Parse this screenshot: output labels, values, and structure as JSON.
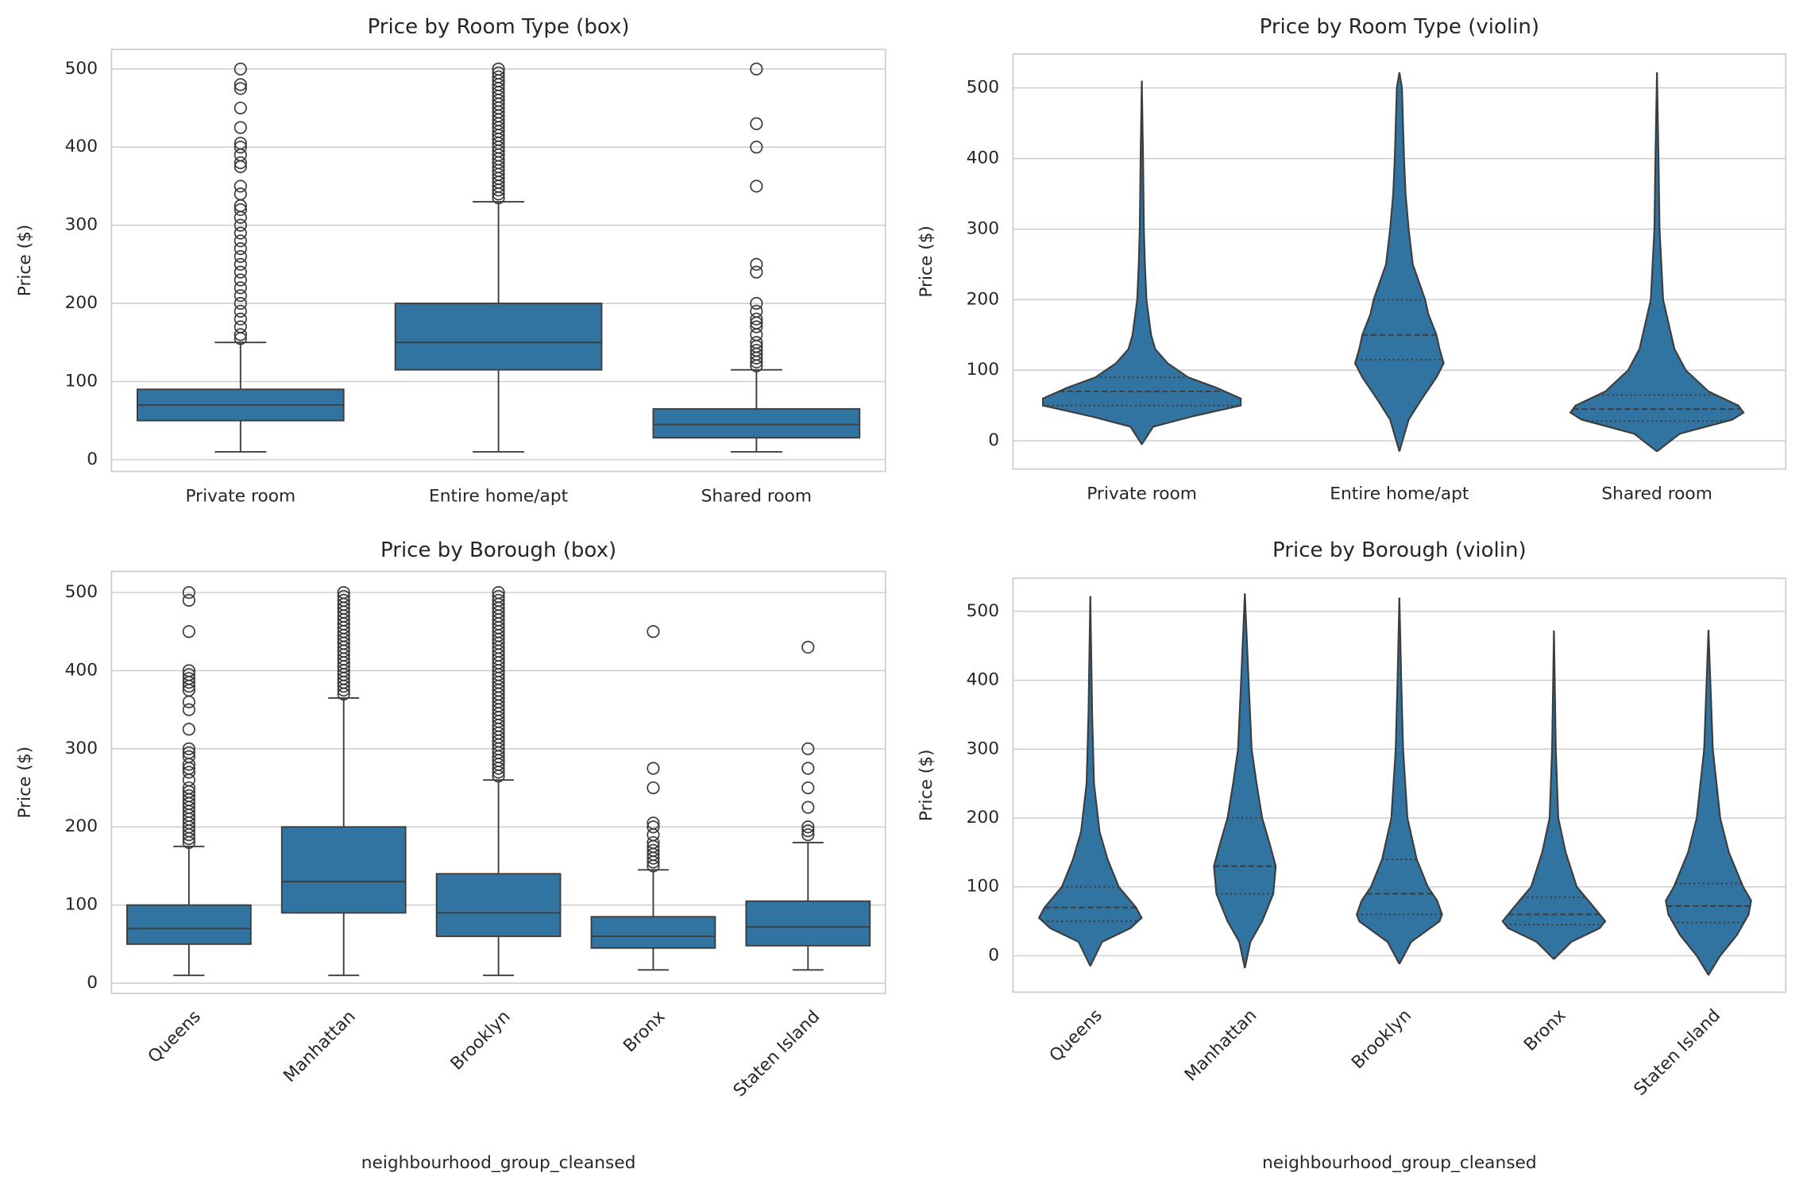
{
  "chart_data": [
    {
      "type": "box",
      "title": "Price by Room Type (box)",
      "ylabel": "Price ($)",
      "color": "#3274a1",
      "grid": true,
      "categories": [
        "Private room",
        "Entire home/apt",
        "Shared room"
      ],
      "ylim": [
        -15,
        525
      ],
      "yticks": [
        0,
        100,
        200,
        300,
        400,
        500
      ],
      "boxes": [
        {
          "min": 10,
          "q1": 50,
          "median": 70,
          "q3": 90,
          "max": 150,
          "outliers": [
            155,
            160,
            170,
            180,
            190,
            200,
            210,
            220,
            230,
            240,
            250,
            260,
            270,
            280,
            290,
            300,
            310,
            320,
            325,
            340,
            350,
            375,
            380,
            390,
            400,
            405,
            425,
            450,
            475,
            480,
            500
          ]
        },
        {
          "min": 10,
          "q1": 115,
          "median": 150,
          "q3": 200,
          "max": 330,
          "outliers": [
            335,
            340,
            345,
            350,
            355,
            360,
            365,
            370,
            375,
            380,
            385,
            390,
            395,
            400,
            405,
            410,
            415,
            420,
            425,
            430,
            435,
            440,
            445,
            450,
            455,
            460,
            465,
            470,
            475,
            480,
            485,
            490,
            495,
            500
          ]
        },
        {
          "min": 10,
          "q1": 28,
          "median": 45,
          "q3": 65,
          "max": 115,
          "outliers": [
            120,
            125,
            130,
            135,
            140,
            145,
            150,
            160,
            170,
            175,
            180,
            190,
            200,
            240,
            250,
            350,
            400,
            430,
            500
          ]
        }
      ]
    },
    {
      "type": "violin",
      "title": "Price by Room Type (violin)",
      "ylabel": "Price ($)",
      "color": "#3274a1",
      "grid": true,
      "categories": [
        "Private room",
        "Entire home/apt",
        "Shared room"
      ],
      "ylim": [
        -40,
        548
      ],
      "yticks": [
        0,
        100,
        200,
        300,
        400,
        500
      ],
      "violins": [
        {
          "q1": 50,
          "median": 70,
          "q3": 90,
          "density_at": [
            -5,
            20,
            35,
            50,
            60,
            75,
            90,
            110,
            130,
            150,
            200,
            250,
            300,
            400,
            510
          ],
          "density": [
            0,
            0.11,
            0.5,
            0.96,
            0.96,
            0.73,
            0.45,
            0.25,
            0.13,
            0.09,
            0.045,
            0.03,
            0.02,
            0.012,
            0
          ]
        },
        {
          "q1": 115,
          "median": 150,
          "q3": 200,
          "density_at": [
            -15,
            30,
            60,
            90,
            110,
            130,
            150,
            180,
            200,
            250,
            300,
            350,
            400,
            450,
            500,
            522
          ],
          "density": [
            0,
            0.09,
            0.22,
            0.36,
            0.43,
            0.39,
            0.36,
            0.28,
            0.25,
            0.13,
            0.09,
            0.06,
            0.045,
            0.035,
            0.025,
            0
          ]
        },
        {
          "q1": 28,
          "median": 45,
          "q3": 65,
          "density_at": [
            -15,
            10,
            30,
            40,
            50,
            70,
            100,
            130,
            200,
            300,
            400,
            522
          ],
          "density": [
            0,
            0.22,
            0.73,
            0.84,
            0.79,
            0.5,
            0.28,
            0.17,
            0.06,
            0.025,
            0.015,
            0
          ]
        }
      ]
    },
    {
      "type": "box",
      "title": "Price by Borough (box)",
      "ylabel": "Price ($)",
      "xlabel": "neighbourhood_group_cleansed",
      "color": "#3274a1",
      "grid": true,
      "categories": [
        "Queens",
        "Manhattan",
        "Brooklyn",
        "Bronx",
        "Staten Island"
      ],
      "ylim": [
        -13,
        527
      ],
      "yticks": [
        0,
        100,
        200,
        300,
        400,
        500
      ],
      "boxes": [
        {
          "min": 10,
          "q1": 50,
          "median": 70,
          "q3": 100,
          "max": 175,
          "outliers": [
            180,
            185,
            190,
            195,
            200,
            205,
            210,
            215,
            220,
            225,
            230,
            235,
            240,
            245,
            250,
            260,
            270,
            275,
            280,
            290,
            295,
            300,
            325,
            350,
            360,
            375,
            380,
            385,
            390,
            395,
            400,
            450,
            490,
            500
          ]
        },
        {
          "min": 10,
          "q1": 90,
          "median": 130,
          "q3": 200,
          "max": 365,
          "outliers": [
            370,
            375,
            380,
            385,
            390,
            395,
            400,
            405,
            410,
            415,
            420,
            425,
            430,
            435,
            440,
            445,
            450,
            455,
            460,
            465,
            470,
            475,
            480,
            485,
            490,
            495,
            500
          ]
        },
        {
          "min": 10,
          "q1": 60,
          "median": 90,
          "q3": 140,
          "max": 260,
          "outliers": [
            265,
            270,
            275,
            280,
            285,
            290,
            295,
            300,
            305,
            310,
            315,
            320,
            325,
            330,
            335,
            340,
            345,
            350,
            355,
            360,
            365,
            370,
            375,
            380,
            385,
            390,
            395,
            400,
            405,
            410,
            415,
            420,
            425,
            430,
            435,
            440,
            445,
            450,
            455,
            460,
            465,
            470,
            475,
            480,
            485,
            490,
            495,
            500
          ]
        },
        {
          "min": 17,
          "q1": 45,
          "median": 60,
          "q3": 85,
          "max": 145,
          "outliers": [
            150,
            155,
            160,
            165,
            170,
            175,
            180,
            190,
            200,
            205,
            250,
            275,
            450
          ]
        },
        {
          "min": 17,
          "q1": 48,
          "median": 72,
          "q3": 105,
          "max": 180,
          "outliers": [
            190,
            195,
            200,
            225,
            250,
            275,
            300,
            430
          ]
        }
      ]
    },
    {
      "type": "violin",
      "title": "Price by Borough (violin)",
      "ylabel": "Price ($)",
      "xlabel": "neighbourhood_group_cleansed",
      "color": "#3274a1",
      "grid": true,
      "categories": [
        "Queens",
        "Manhattan",
        "Brooklyn",
        "Bronx",
        "Staten Island"
      ],
      "ylim": [
        -53,
        548
      ],
      "yticks": [
        0,
        100,
        200,
        300,
        400,
        500
      ],
      "violins": [
        {
          "q1": 50,
          "median": 70,
          "q3": 100,
          "density_at": [
            -15,
            20,
            40,
            55,
            70,
            100,
            140,
            180,
            250,
            350,
            522
          ],
          "density": [
            0,
            0.19,
            0.65,
            0.83,
            0.74,
            0.46,
            0.28,
            0.15,
            0.06,
            0.03,
            0
          ]
        },
        {
          "q1": 90,
          "median": 130,
          "q3": 200,
          "density_at": [
            -18,
            20,
            50,
            90,
            130,
            160,
            200,
            250,
            300,
            400,
            526
          ],
          "density": [
            0,
            0.09,
            0.28,
            0.46,
            0.5,
            0.41,
            0.28,
            0.19,
            0.11,
            0.06,
            0
          ]
        },
        {
          "q1": 60,
          "median": 90,
          "q3": 140,
          "density_at": [
            -12,
            20,
            50,
            60,
            80,
            100,
            140,
            200,
            300,
            400,
            520
          ],
          "density": [
            0,
            0.19,
            0.65,
            0.69,
            0.61,
            0.46,
            0.28,
            0.13,
            0.06,
            0.03,
            0
          ]
        },
        {
          "q1": 45,
          "median": 60,
          "q3": 85,
          "density_at": [
            -5,
            20,
            40,
            50,
            70,
            100,
            150,
            200,
            300,
            472
          ],
          "density": [
            0,
            0.28,
            0.74,
            0.83,
            0.65,
            0.37,
            0.19,
            0.07,
            0.03,
            0
          ]
        },
        {
          "q1": 48,
          "median": 72,
          "q3": 105,
          "density_at": [
            -28,
            0,
            30,
            60,
            80,
            100,
            150,
            200,
            300,
            473
          ],
          "density": [
            0,
            0.19,
            0.46,
            0.65,
            0.69,
            0.56,
            0.33,
            0.19,
            0.07,
            0
          ]
        }
      ]
    }
  ]
}
